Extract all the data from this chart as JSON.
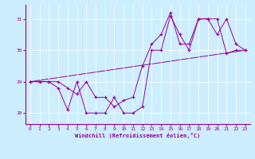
{
  "xlabel": "Windchill (Refroidissement éolien,°C)",
  "bg_color": "#cceeff",
  "line_color": "#990099",
  "marker": "+",
  "xlim": [
    -0.5,
    23.5
  ],
  "ylim": [
    27.65,
    31.45
  ],
  "yticks": [
    28,
    29,
    30,
    31
  ],
  "xticks": [
    0,
    1,
    2,
    3,
    4,
    5,
    6,
    7,
    8,
    9,
    10,
    11,
    12,
    13,
    14,
    15,
    16,
    17,
    18,
    19,
    20,
    21,
    22,
    23
  ],
  "series1_x": [
    0,
    1,
    2,
    3,
    4,
    5,
    6,
    7,
    8,
    9,
    10,
    11,
    12,
    13,
    14,
    15,
    16,
    17,
    18,
    19,
    20,
    21,
    22,
    23
  ],
  "series1_y": [
    29.0,
    29.0,
    29.0,
    28.8,
    28.1,
    29.0,
    28.0,
    28.0,
    28.0,
    28.5,
    28.0,
    28.0,
    28.2,
    30.0,
    30.0,
    31.1,
    30.5,
    30.0,
    31.0,
    31.0,
    31.0,
    29.9,
    30.0,
    30.0
  ],
  "series2_x": [
    0,
    1,
    2,
    3,
    4,
    5,
    6,
    7,
    8,
    9,
    10,
    11,
    12,
    13,
    14,
    15,
    16,
    17,
    18,
    19,
    20,
    21,
    22,
    23
  ],
  "series2_y": [
    29.0,
    29.0,
    29.0,
    29.0,
    28.8,
    28.6,
    29.0,
    28.5,
    28.5,
    28.2,
    28.4,
    28.5,
    29.5,
    30.2,
    30.5,
    31.2,
    30.2,
    30.2,
    31.0,
    31.0,
    30.5,
    31.0,
    30.2,
    30.0
  ],
  "series3_x": [
    0,
    23
  ],
  "series3_y": [
    29.0,
    30.0
  ]
}
